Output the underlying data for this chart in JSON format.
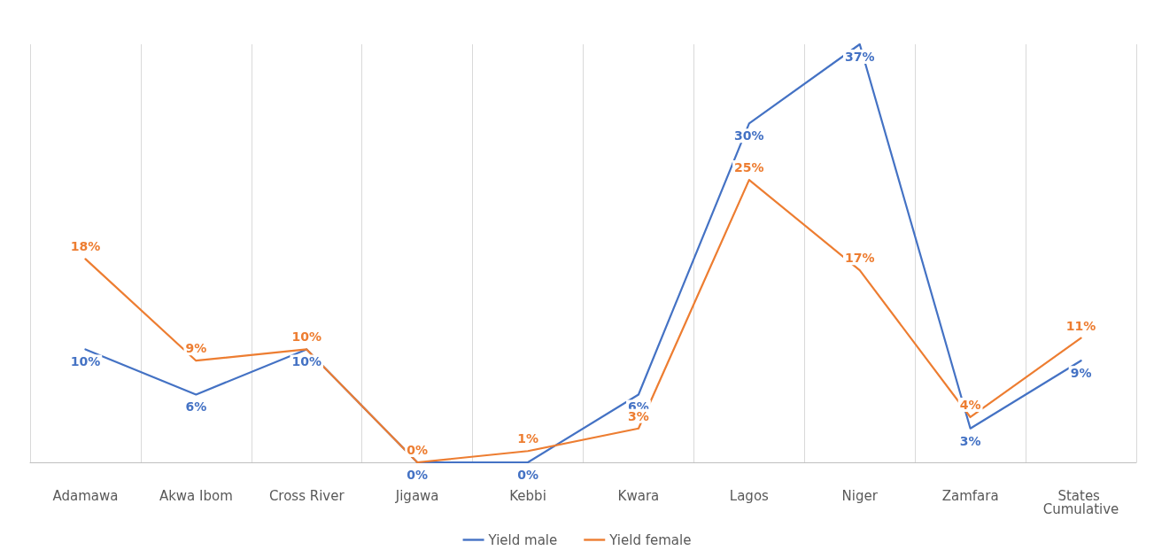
{
  "chart_data": {
    "type": "line",
    "categories": [
      "Adamawa",
      "Akwa Ibom",
      "Cross River",
      "Jigawa",
      "Kebbi",
      "Kwara",
      "Lagos",
      "Niger",
      "Zamfara",
      "States Cumulative"
    ],
    "series": [
      {
        "name": "Yield male",
        "color": "#4472c4",
        "values": [
          10,
          6,
          10,
          0,
          0,
          6,
          30,
          37,
          3,
          9
        ],
        "value_labels": [
          "10%",
          "6%",
          "10%",
          "0%",
          "0%",
          "6%",
          "30%",
          "37%",
          "3%",
          "9%"
        ]
      },
      {
        "name": "Yield female",
        "color": "#ed7d31",
        "values": [
          18,
          9,
          10,
          0,
          1,
          3,
          25,
          17,
          4,
          11
        ],
        "value_labels": [
          "18%",
          "9%",
          "10%",
          "0%",
          "1%",
          "3%",
          "25%",
          "17%",
          "4%",
          "11%"
        ]
      }
    ],
    "grid": "x",
    "legend": "bottom",
    "marker": "none",
    "tick_labels": "x",
    "line_style": "solid"
  }
}
